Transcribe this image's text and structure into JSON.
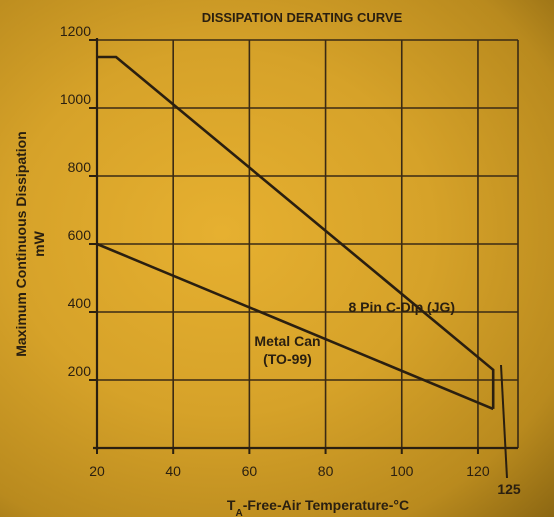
{
  "chart_data": {
    "type": "line",
    "title": "DISSIPATION DERATING CURVE",
    "xlabel": {
      "prefix": "T",
      "sub": "A",
      "rest": "-Free-Air Temperature-°C"
    },
    "ylabel": [
      "Maximum Continuous Dissipation",
      "mW"
    ],
    "xlim": [
      20,
      125
    ],
    "ylim": [
      0,
      1200
    ],
    "xticks": [
      20,
      40,
      60,
      80,
      100,
      120
    ],
    "yticks": [
      200,
      400,
      600,
      800,
      1000,
      1200
    ],
    "extra_xtick": {
      "value": 125,
      "label": "125"
    },
    "grid": true,
    "series": [
      {
        "name": "8 Pin C-Dip (JG)",
        "points": [
          [
            20,
            1150
          ],
          [
            25,
            1150
          ],
          [
            124,
            230
          ],
          [
            124,
            115
          ]
        ]
      },
      {
        "name": "Metal Can (TO-99)",
        "points": [
          [
            20,
            600
          ],
          [
            124,
            115
          ]
        ]
      }
    ],
    "annotations": [
      {
        "lines": [
          "8 Pin C-Dip (JG)"
        ],
        "x": 100,
        "y": 400
      },
      {
        "lines": [
          "Metal Can",
          "(TO-99)"
        ],
        "x": 70,
        "y": 300
      }
    ],
    "colors": {
      "line": "#2a1f10",
      "grid": "#3a2a14"
    }
  }
}
